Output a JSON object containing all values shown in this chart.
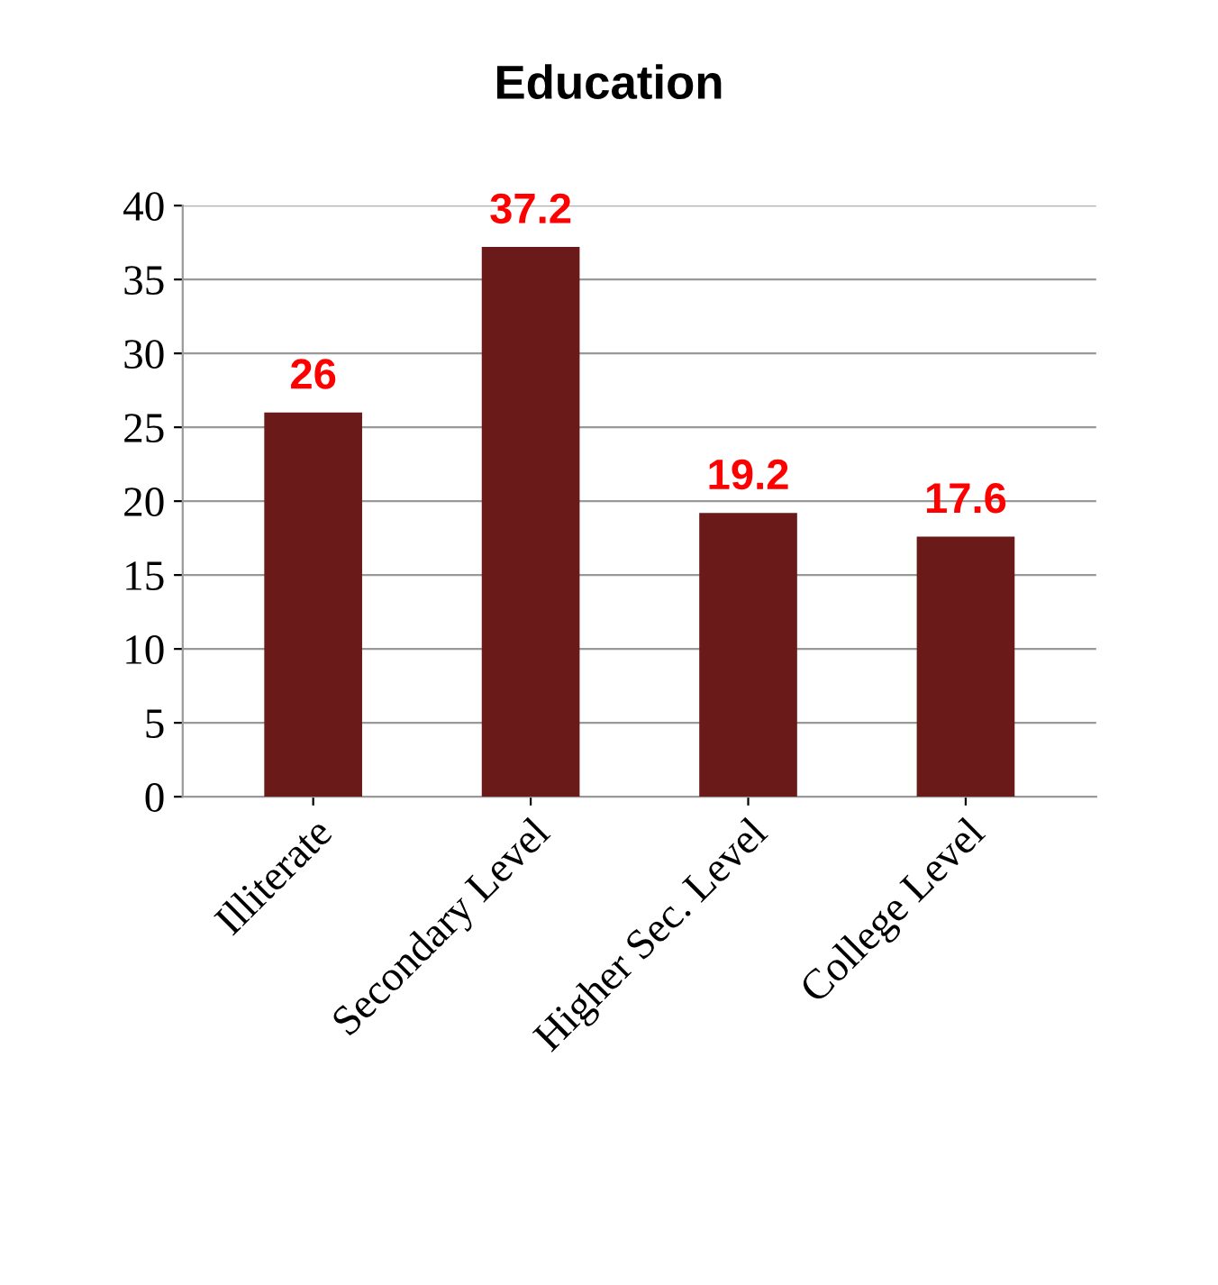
{
  "chart_data": {
    "type": "bar",
    "title": "Education",
    "categories": [
      "Illiterate",
      "Secondary Level",
      "Higher Sec. Level",
      "College Level"
    ],
    "values": [
      26,
      37.2,
      19.2,
      17.6
    ],
    "color": "#6b1a1a",
    "ylim": [
      0,
      40
    ],
    "yticks": [
      0,
      5,
      10,
      15,
      20,
      25,
      30,
      35,
      40
    ],
    "grid": "y",
    "data_labels": true
  }
}
